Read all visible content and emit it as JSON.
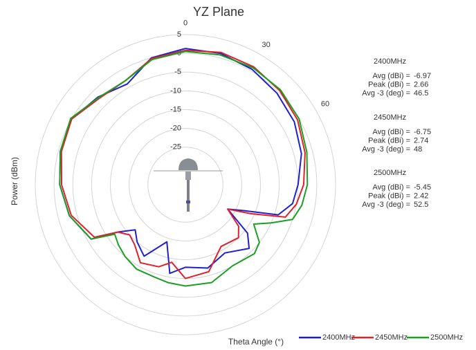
{
  "chart_data": {
    "type": "polar",
    "title": "YZ Plane",
    "ylabel": "Power (dBm)",
    "xlabel": "Theta  Angle (°)",
    "ylim": [
      -35,
      5
    ],
    "yticks": [
      5,
      0,
      -5,
      -10,
      -15,
      -20,
      -25
    ],
    "xticks": [
      0,
      30,
      60
    ],
    "x": [
      0,
      15,
      30,
      45,
      60,
      75,
      90,
      100,
      108,
      114,
      120,
      128,
      135,
      150,
      165,
      180,
      190,
      198,
      210,
      220,
      228,
      235,
      240,
      255,
      270,
      285,
      300,
      315,
      330,
      345,
      360
    ],
    "series": [
      {
        "name": "2400MHz",
        "color": "#1f1fd0",
        "values": [
          1.3,
          1.2,
          0.5,
          -0.5,
          -1.5,
          -3,
          -5,
          -6,
          -9,
          -18,
          -22,
          -14,
          -11,
          -14,
          -12,
          -13,
          -11,
          -19,
          -13,
          -15,
          -17,
          -13,
          -6,
          -3,
          -1.5,
          -0.5,
          0,
          -2,
          -4,
          0,
          1.3
        ]
      },
      {
        "name": "2450MHz",
        "color": "#e0202a",
        "values": [
          0.8,
          1.5,
          1.3,
          0.5,
          -0.5,
          -2,
          -3.5,
          -5,
          -7,
          -16,
          -22,
          -17,
          -15,
          -16,
          -11,
          -10,
          -14,
          -12,
          -11,
          -14,
          -15,
          -13,
          -7,
          -3.5,
          -2,
          -0.8,
          0,
          -2.5,
          -3,
          -0.2,
          0.8
        ]
      },
      {
        "name": "2500MHz",
        "color": "#18a020",
        "values": [
          0.5,
          0.8,
          1.0,
          0.8,
          0,
          -1.5,
          -2.5,
          -3.5,
          -5,
          -10,
          -14,
          -10,
          -9,
          -10,
          -8,
          -8,
          -8.5,
          -9,
          -9,
          -10,
          -11,
          -12,
          -6,
          -3,
          -1.5,
          -0.5,
          0.3,
          -2.2,
          -3,
          -0.5,
          0.5
        ]
      }
    ],
    "stats": [
      {
        "rows": [
          {
            "label": "Avg (dBi) =",
            "value": -6.97
          },
          {
            "label": "Peak (dBi) =",
            "value": 2.66
          },
          {
            "label": "Avg -3 (deg) =",
            "value": 46.5
          }
        ]
      },
      {
        "rows": [
          {
            "label": "Avg (dBi) =",
            "value": -6.75
          },
          {
            "label": "Peak (dBi) =",
            "value": 2.74
          },
          {
            "label": "Avg -3 (deg) =",
            "value": 48
          }
        ]
      },
      {
        "rows": [
          {
            "label": "Avg (dBi) =",
            "value": -5.45
          },
          {
            "label": "Peak (dBi) =",
            "value": 2.42
          },
          {
            "label": "Avg -3 (deg) =",
            "value": 52.5
          }
        ]
      }
    ],
    "legend": "bottom-right"
  }
}
